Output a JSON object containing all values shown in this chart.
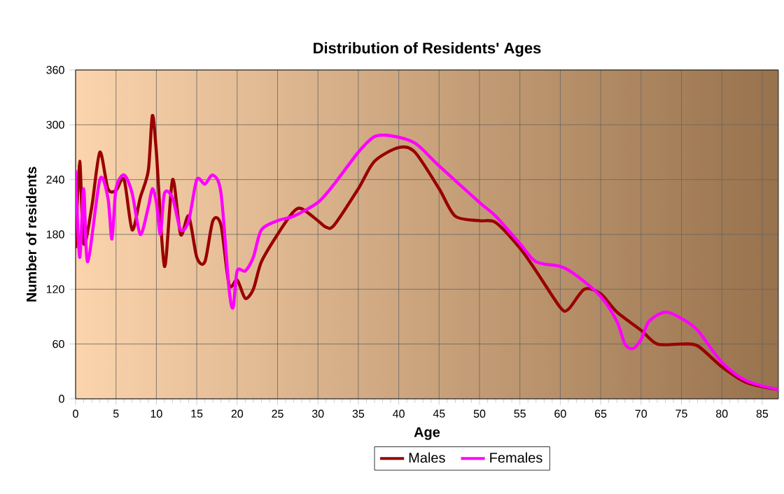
{
  "chart_data": {
    "type": "line",
    "title": "Distribution of Residents' Ages",
    "xlabel": "Age",
    "ylabel": "Number of residents",
    "xlim": [
      0,
      87
    ],
    "xticks": [
      0,
      5,
      10,
      15,
      20,
      25,
      30,
      35,
      40,
      45,
      50,
      55,
      60,
      65,
      70,
      75,
      80,
      85
    ],
    "ylim": [
      0,
      360
    ],
    "yticks": [
      0,
      60,
      120,
      180,
      240,
      300,
      360
    ],
    "grid": true,
    "legend": "bottom",
    "marker": "none",
    "line_style": "solid",
    "series": [
      {
        "name": "Males",
        "color": "#990000",
        "x": [
          0,
          0.5,
          1,
          2,
          3,
          4,
          5,
          6,
          7,
          8,
          9,
          9.5,
          10,
          11,
          12,
          13,
          14,
          15,
          16,
          17,
          18,
          19,
          20,
          21,
          22,
          23,
          25,
          27,
          28,
          30,
          31,
          32,
          35,
          37,
          40,
          42,
          45,
          47,
          50,
          52,
          55,
          57,
          60,
          61,
          63,
          65,
          67,
          70,
          72,
          75,
          77,
          80,
          83,
          87
        ],
        "values": [
          165,
          260,
          170,
          210,
          270,
          230,
          228,
          240,
          185,
          220,
          250,
          310,
          270,
          145,
          240,
          180,
          200,
          155,
          150,
          195,
          190,
          125,
          130,
          110,
          120,
          150,
          180,
          205,
          208,
          195,
          188,
          190,
          230,
          260,
          275,
          270,
          230,
          200,
          195,
          193,
          165,
          140,
          100,
          98,
          120,
          115,
          95,
          75,
          60,
          60,
          58,
          35,
          18,
          10
        ]
      },
      {
        "name": "Females",
        "color": "#ff00ff",
        "x": [
          0,
          0.5,
          1,
          1.5,
          3,
          4,
          4.5,
          5,
          6,
          7,
          8,
          9,
          9.5,
          10,
          10.5,
          11,
          12,
          13,
          14,
          15,
          16,
          17,
          18,
          19,
          19.5,
          20,
          21,
          22,
          23,
          25,
          27,
          30,
          32,
          35,
          37,
          39,
          42,
          45,
          50,
          52,
          55,
          57,
          60,
          62,
          65,
          67,
          68,
          69,
          70,
          71,
          73,
          75,
          77,
          80,
          83,
          87
        ],
        "values": [
          250,
          155,
          230,
          150,
          240,
          220,
          175,
          230,
          245,
          225,
          180,
          210,
          230,
          215,
          180,
          225,
          220,
          185,
          195,
          240,
          235,
          245,
          225,
          120,
          100,
          140,
          140,
          155,
          185,
          195,
          200,
          215,
          235,
          270,
          287,
          288,
          280,
          255,
          215,
          200,
          170,
          150,
          145,
          135,
          112,
          85,
          60,
          55,
          65,
          85,
          95,
          88,
          75,
          40,
          20,
          10
        ]
      }
    ]
  }
}
